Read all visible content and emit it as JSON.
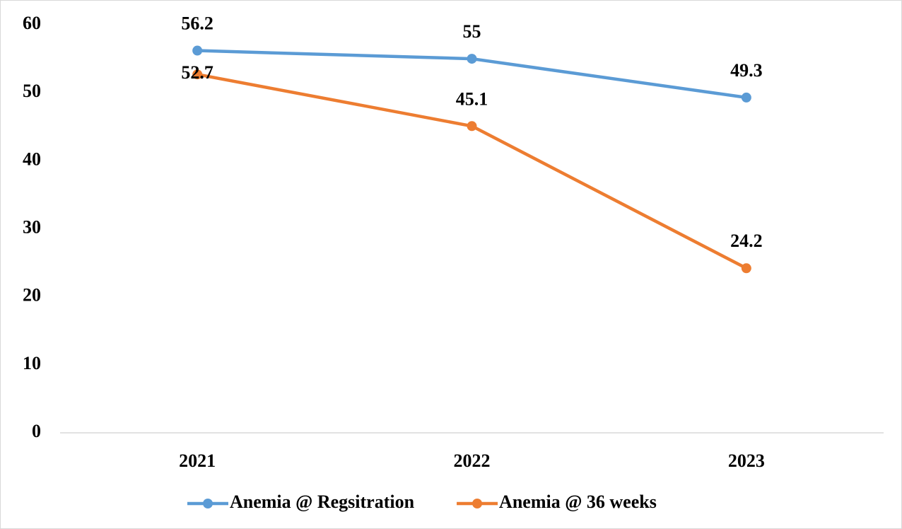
{
  "chart_data": {
    "type": "line",
    "categories": [
      "2021",
      "2022",
      "2023"
    ],
    "series": [
      {
        "name": "Anemia @ Regsitration",
        "color": "#5b9bd5",
        "values": [
          56.2,
          55,
          49.3
        ]
      },
      {
        "name": "Anemia @ 36 weeks",
        "color": "#ed7d31",
        "values": [
          52.7,
          45.1,
          24.2
        ]
      }
    ],
    "ylim": [
      0,
      60
    ],
    "yticks": [
      0,
      10,
      20,
      30,
      40,
      50,
      60
    ],
    "grid": false,
    "legend": "bottom"
  }
}
